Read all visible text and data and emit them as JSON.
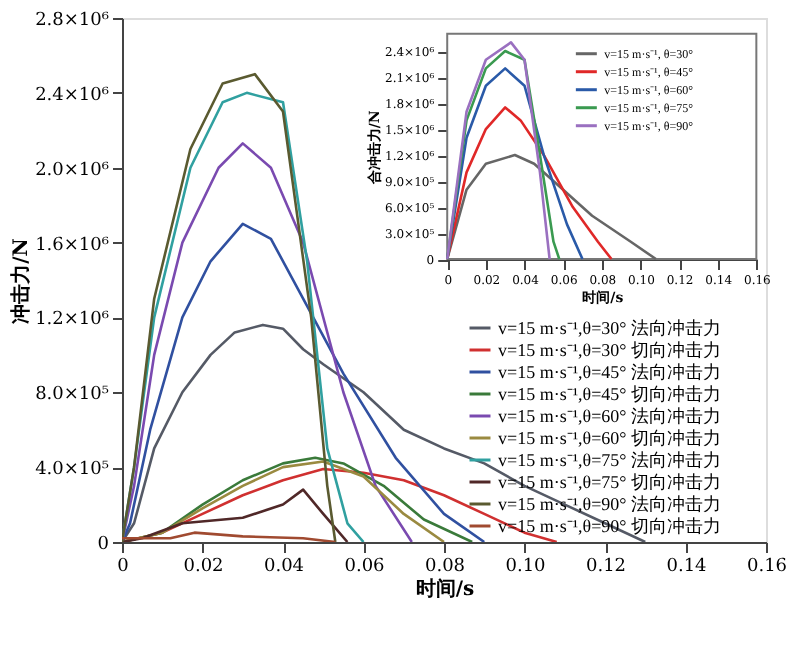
{
  "chart_data": [
    {
      "type": "line",
      "xlabel": "时间/s",
      "ylabel": "冲击力/N",
      "xlim": [
        0,
        0.16
      ],
      "ylim": [
        0,
        2800000
      ],
      "xticks": [
        0,
        0.02,
        0.04,
        0.06,
        0.08,
        {
          "value": 0.1,
          "label": "0.10"
        },
        0.12,
        0.14,
        0.16
      ],
      "yticks": [
        0,
        {
          "value": 400000,
          "label": "4.0×10⁵"
        },
        {
          "value": 800000,
          "label": "8.0×10⁵"
        },
        {
          "value": 1200000,
          "label": "1.2×10⁶"
        },
        {
          "value": 1600000,
          "label": "1.6×10⁶"
        },
        {
          "value": 2000000,
          "label": "2.0×10⁶"
        },
        {
          "value": 2400000,
          "label": "2.4×10⁶"
        },
        {
          "value": 2800000,
          "label": "2.8×10⁶"
        }
      ],
      "grid": false,
      "legend": "bottom right",
      "marker": "none",
      "line_style": "solid",
      "series": [
        {
          "name": "v=15 m·s⁻¹,θ=30° 法向冲击力",
          "color": "#555a66",
          "x": [
            0,
            0.003,
            0.008,
            0.015,
            0.022,
            0.028,
            0.035,
            0.04,
            0.045,
            0.05,
            0.06,
            0.07,
            0.08,
            0.09,
            0.1,
            0.11,
            0.12,
            0.13
          ],
          "values": [
            0,
            100000,
            500000,
            800000,
            1000000,
            1120000,
            1160000,
            1140000,
            1030000,
            950000,
            800000,
            600000,
            500000,
            420000,
            300000,
            200000,
            100000,
            0
          ]
        },
        {
          "name": "v=15 m·s⁻¹,θ=30° 切向冲击力",
          "color": "#d03030",
          "x": [
            0,
            0.01,
            0.02,
            0.03,
            0.04,
            0.05,
            0.06,
            0.07,
            0.08,
            0.09,
            0.1,
            0.108
          ],
          "values": [
            0,
            50000,
            150000,
            250000,
            330000,
            390000,
            370000,
            330000,
            250000,
            150000,
            50000,
            0
          ]
        },
        {
          "name": "v=15 m·s⁻¹,θ=45° 法向冲击力",
          "color": "#3050a0",
          "x": [
            0,
            0.002,
            0.007,
            0.015,
            0.022,
            0.03,
            0.037,
            0.045,
            0.055,
            0.068,
            0.08,
            0.09
          ],
          "values": [
            0,
            100000,
            600000,
            1200000,
            1500000,
            1700000,
            1620000,
            1300000,
            900000,
            450000,
            150000,
            0
          ]
        },
        {
          "name": "v=15 m·s⁻¹,θ=45° 切向冲击力",
          "color": "#3a7a3a",
          "x": [
            0,
            0.01,
            0.02,
            0.03,
            0.04,
            0.048,
            0.055,
            0.065,
            0.075,
            0.087
          ],
          "values": [
            0,
            50000,
            200000,
            330000,
            420000,
            450000,
            420000,
            300000,
            120000,
            0
          ]
        },
        {
          "name": "v=15 m·s⁻¹,θ=60° 法向冲击力",
          "color": "#7a4ab0",
          "x": [
            0,
            0.003,
            0.008,
            0.015,
            0.024,
            0.03,
            0.037,
            0.045,
            0.055,
            0.063,
            0.072
          ],
          "values": [
            0,
            300000,
            1000000,
            1600000,
            2000000,
            2130000,
            2000000,
            1600000,
            800000,
            300000,
            0
          ]
        },
        {
          "name": "v=15 m·s⁻¹,θ=60° 切向冲击力",
          "color": "#9a8a40",
          "x": [
            0,
            0.01,
            0.02,
            0.03,
            0.04,
            0.05,
            0.06,
            0.07,
            0.08
          ],
          "values": [
            0,
            50000,
            180000,
            300000,
            400000,
            430000,
            350000,
            150000,
            0
          ]
        },
        {
          "name": "v=15 m·s⁻¹,θ=75° 法向冲击力",
          "color": "#30a0a0",
          "x": [
            0,
            0.003,
            0.008,
            0.017,
            0.025,
            0.031,
            0.04,
            0.046,
            0.051,
            0.056,
            0.06
          ],
          "values": [
            0,
            400000,
            1200000,
            2000000,
            2350000,
            2400000,
            2350000,
            1500000,
            500000,
            100000,
            0
          ]
        },
        {
          "name": "v=15 m·s⁻¹,θ=75° 切向冲击力",
          "color": "#502828",
          "x": [
            0,
            0.005,
            0.015,
            0.03,
            0.04,
            0.045,
            0.05,
            0.056
          ],
          "values": [
            0,
            20000,
            100000,
            130000,
            200000,
            280000,
            150000,
            0
          ]
        },
        {
          "name": "v=15 m·s⁻¹,θ=90° 法向冲击力",
          "color": "#5a5a30",
          "x": [
            0,
            0.003,
            0.008,
            0.017,
            0.025,
            0.033,
            0.04,
            0.047,
            0.051,
            0.053
          ],
          "values": [
            0,
            400000,
            1300000,
            2100000,
            2450000,
            2500000,
            2300000,
            1200000,
            300000,
            0
          ]
        },
        {
          "name": "v=15 m·s⁻¹,θ=90° 切向冲击力",
          "color": "#a04a30",
          "x": [
            0,
            0.012,
            0.018,
            0.03,
            0.045,
            0.053
          ],
          "values": [
            20000,
            20000,
            50000,
            30000,
            20000,
            0
          ]
        }
      ]
    },
    {
      "type": "line",
      "xlabel": "时间/s",
      "ylabel": "合冲击力/N",
      "xlim": [
        0,
        0.16
      ],
      "ylim": [
        0,
        2600000
      ],
      "xticks": [
        0,
        0.02,
        0.04,
        0.06,
        0.08,
        {
          "value": 0.1,
          "label": "0.10"
        },
        0.12,
        0.14,
        0.16
      ],
      "yticks": [
        0,
        {
          "value": 300000,
          "label": "3.0×10⁵"
        },
        {
          "value": 600000,
          "label": "6.0×10⁵"
        },
        {
          "value": 900000,
          "label": "9.0×10⁵"
        },
        {
          "value": 1200000,
          "label": "1.2×10⁶"
        },
        {
          "value": 1500000,
          "label": "1.5×10⁶"
        },
        {
          "value": 1800000,
          "label": "1.8×10⁶"
        },
        {
          "value": 2100000,
          "label": "2.1×10⁶"
        },
        {
          "value": 2400000,
          "label": "2.4×10⁶"
        }
      ],
      "grid": false,
      "legend": "top right",
      "marker": "none",
      "line_style": "solid",
      "series": [
        {
          "name": "v=15 m·s⁻¹, θ=30°",
          "color": "#666666",
          "x": [
            0,
            0.01,
            0.02,
            0.035,
            0.045,
            0.06,
            0.075,
            0.095,
            0.108
          ],
          "values": [
            0,
            800000,
            1100000,
            1200000,
            1100000,
            800000,
            500000,
            200000,
            0
          ]
        },
        {
          "name": "v=15 m·s⁻¹, θ=45°",
          "color": "#e02828",
          "x": [
            0,
            0.01,
            0.02,
            0.03,
            0.038,
            0.05,
            0.065,
            0.078,
            0.085
          ],
          "values": [
            0,
            1000000,
            1500000,
            1750000,
            1600000,
            1200000,
            600000,
            200000,
            0
          ]
        },
        {
          "name": "v=15 m·s⁻¹, θ=60°",
          "color": "#2a5aa8",
          "x": [
            0,
            0.01,
            0.02,
            0.03,
            0.04,
            0.05,
            0.062,
            0.07
          ],
          "values": [
            0,
            1400000,
            2000000,
            2200000,
            2000000,
            1200000,
            400000,
            0
          ]
        },
        {
          "name": "v=15 m·s⁻¹, θ=75°",
          "color": "#3a9a50",
          "x": [
            0,
            0.01,
            0.02,
            0.03,
            0.04,
            0.048,
            0.055,
            0.058
          ],
          "values": [
            0,
            1600000,
            2200000,
            2400000,
            2300000,
            1200000,
            200000,
            0
          ]
        },
        {
          "name": "v=15 m·s⁻¹, θ=90°",
          "color": "#9a70c0",
          "x": [
            0,
            0.01,
            0.02,
            0.033,
            0.04,
            0.048,
            0.053
          ],
          "values": [
            0,
            1700000,
            2300000,
            2500000,
            2300000,
            1000000,
            0
          ]
        }
      ]
    }
  ]
}
